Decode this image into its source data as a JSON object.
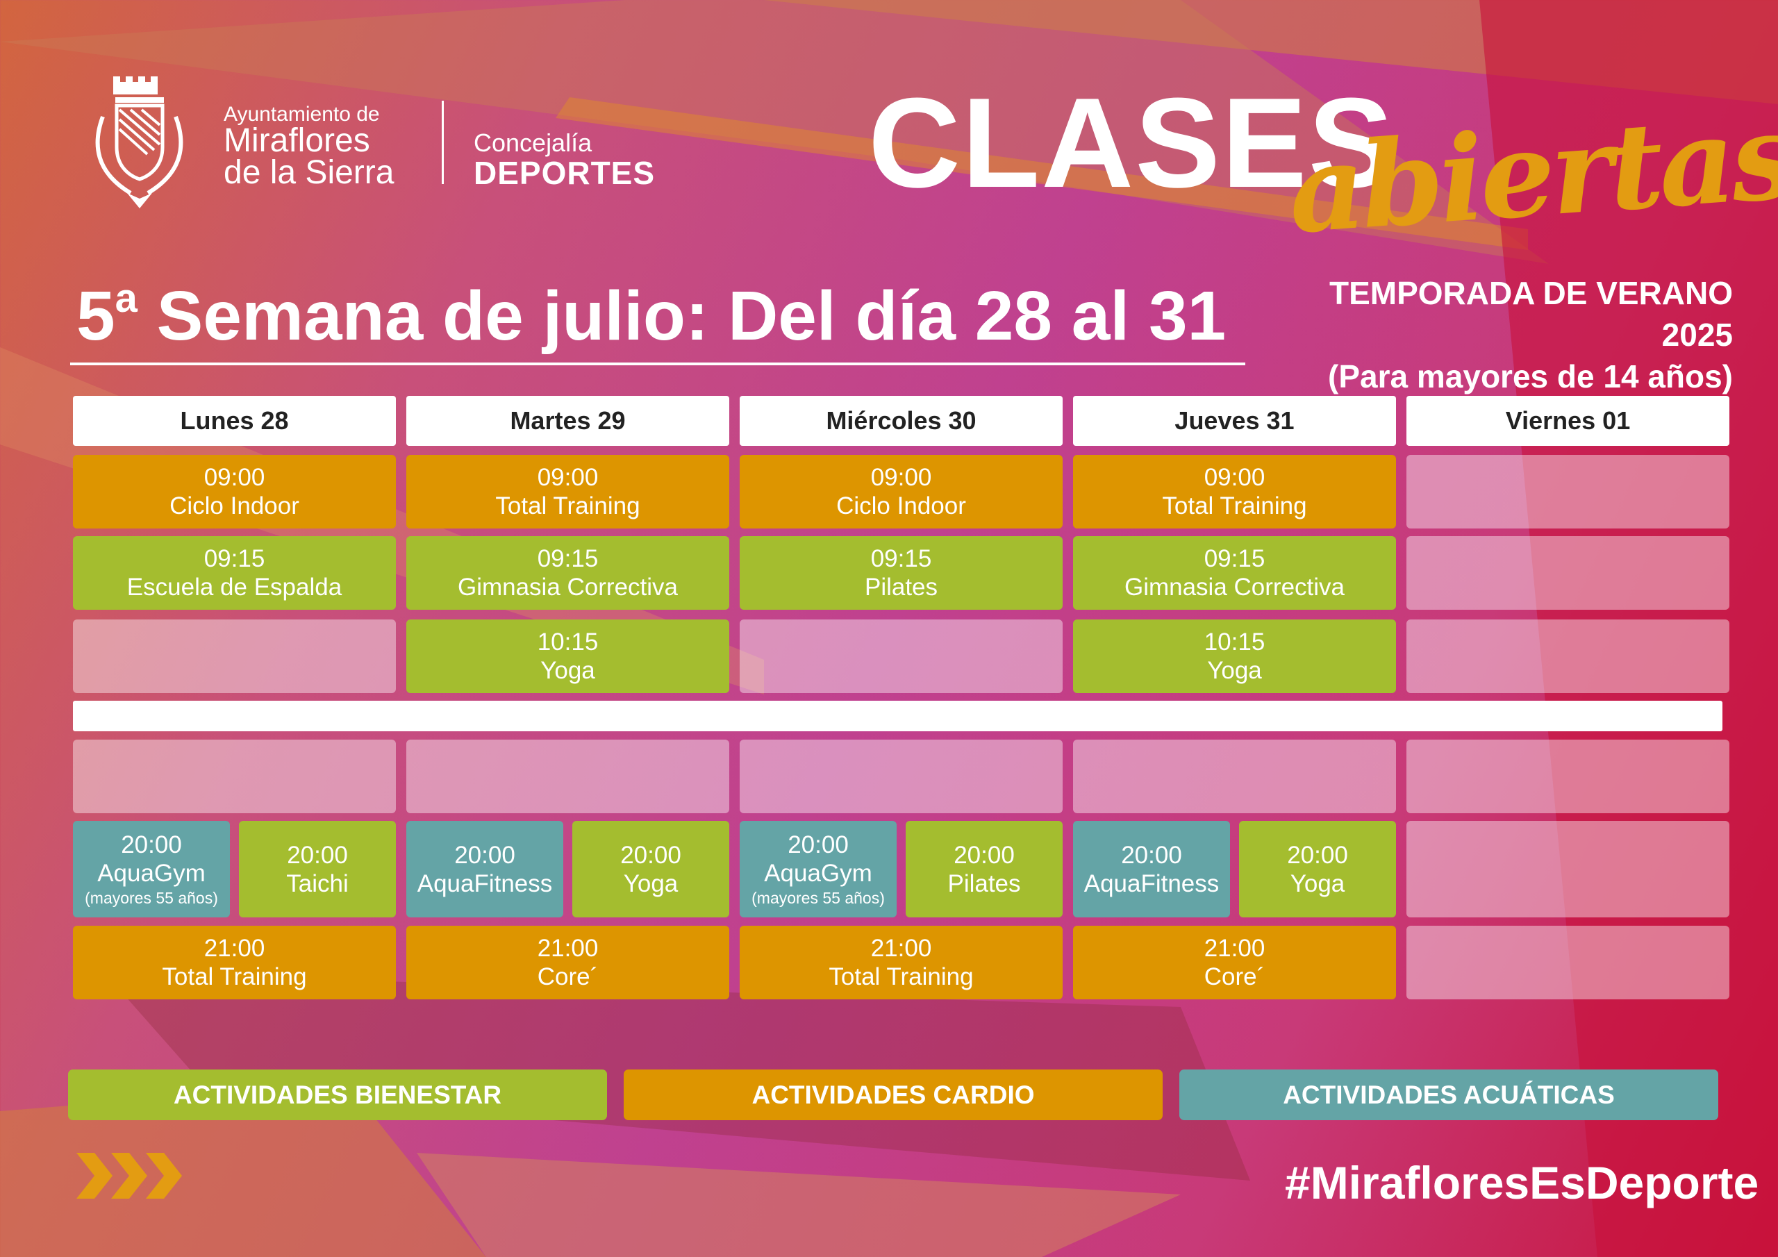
{
  "header": {
    "org_line1": "Ayuntamiento de",
    "org_line2": "Miraflores",
    "org_line3": "de la Sierra",
    "dept_line1": "Concejalía",
    "dept_line2": "DEPORTES",
    "title_main": "CLASES",
    "title_script": "abiertas",
    "week_num": "5",
    "week_sup": "a",
    "week_text": " Semana de julio: Del día 28 al 31",
    "season": "TEMPORADA DE VERANO 2025",
    "age": "(Para mayores de 14 años)"
  },
  "colors": {
    "bienestar": "#a4bd2f",
    "cardio": "#dd9500",
    "acuaticas": "#64a4a6",
    "script": "#e39c12"
  },
  "days": [
    "Lunes 28",
    "Martes 29",
    "Miércoles 30",
    "Jueves 31",
    "Viernes 01"
  ],
  "schedule": {
    "morning": [
      [
        [
          {
            "time": "09:00",
            "name": "Ciclo Indoor",
            "type": "cardio"
          }
        ],
        [
          {
            "time": "09:00",
            "name": "Total Training",
            "type": "cardio"
          }
        ],
        [
          {
            "time": "09:00",
            "name": "Ciclo Indoor",
            "type": "cardio"
          }
        ],
        [
          {
            "time": "09:00",
            "name": "Total Training",
            "type": "cardio"
          }
        ],
        []
      ],
      [
        [
          {
            "time": "09:15",
            "name": "Escuela de Espalda",
            "type": "bienestar"
          }
        ],
        [
          {
            "time": "09:15",
            "name": "Gimnasia Correctiva",
            "type": "bienestar"
          }
        ],
        [
          {
            "time": "09:15",
            "name": "Pilates",
            "type": "bienestar"
          }
        ],
        [
          {
            "time": "09:15",
            "name": "Gimnasia Correctiva",
            "type": "bienestar"
          }
        ],
        []
      ],
      [
        [],
        [
          {
            "time": "10:15",
            "name": "Yoga",
            "type": "bienestar"
          }
        ],
        [],
        [
          {
            "time": "10:15",
            "name": "Yoga",
            "type": "bienestar"
          }
        ],
        []
      ]
    ],
    "evening": [
      [
        [],
        [],
        [],
        [],
        []
      ],
      [
        [
          {
            "time": "20:00",
            "name": "AquaGym",
            "note": "(mayores 55 años)",
            "type": "acuaticas"
          },
          {
            "time": "20:00",
            "name": "Taichi",
            "type": "bienestar"
          }
        ],
        [
          {
            "time": "20:00",
            "name": "AquaFitness",
            "type": "acuaticas"
          },
          {
            "time": "20:00",
            "name": "Yoga",
            "type": "bienestar"
          }
        ],
        [
          {
            "time": "20:00",
            "name": "AquaGym",
            "note": "(mayores 55 años)",
            "type": "acuaticas"
          },
          {
            "time": "20:00",
            "name": "Pilates",
            "type": "bienestar"
          }
        ],
        [
          {
            "time": "20:00",
            "name": "AquaFitness",
            "type": "acuaticas"
          },
          {
            "time": "20:00",
            "name": "Yoga",
            "type": "bienestar"
          }
        ],
        []
      ],
      [
        [
          {
            "time": "21:00",
            "name": "Total Training",
            "type": "cardio"
          }
        ],
        [
          {
            "time": "21:00",
            "name": "Core´",
            "type": "cardio"
          }
        ],
        [
          {
            "time": "21:00",
            "name": "Total Training",
            "type": "cardio"
          }
        ],
        [
          {
            "time": "21:00",
            "name": "Core´",
            "type": "cardio"
          }
        ],
        []
      ]
    ]
  },
  "legend": [
    {
      "label": "ACTIVIDADES BIENESTAR",
      "type": "bienestar"
    },
    {
      "label": "ACTIVIDADES CARDIO",
      "type": "cardio"
    },
    {
      "label": "ACTIVIDADES ACUÁTICAS",
      "type": "acuaticas"
    }
  ],
  "footer": {
    "hashtag": "#MirafloresEsDeporte",
    "icon": "triple-chevron-right-icon"
  }
}
